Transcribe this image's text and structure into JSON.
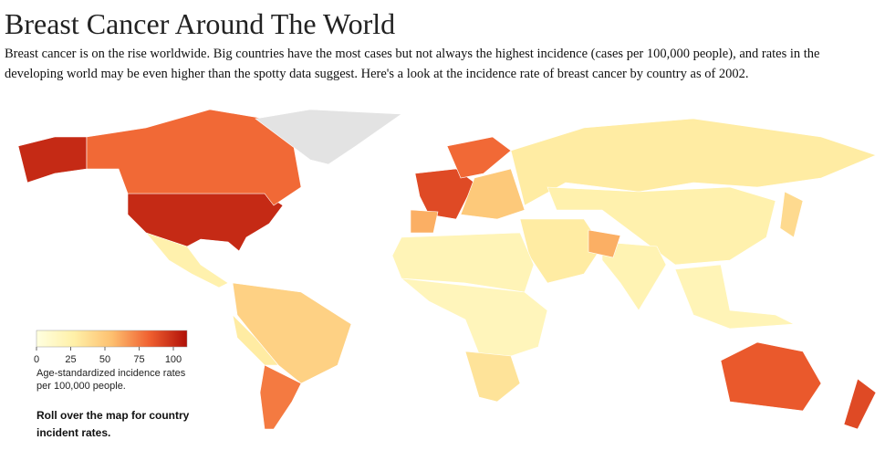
{
  "header": {
    "title": "Breast Cancer Around The World",
    "description": "Breast cancer is on the rise worldwide. Big countries have the most cases but not always the highest incidence (cases per 100,000 people), and rates in the developing world may be even higher than the spotty data suggest. Here's a look at the incidence rate of breast cancer by country as of 2002."
  },
  "map": {
    "type": "choropleth",
    "values": [
      101,
      80,
      null,
      25,
      45,
      75,
      30,
      90,
      80,
      50,
      60,
      30,
      25,
      22,
      30,
      60,
      20,
      18,
      35,
      20,
      40,
      85,
      90
    ],
    "no_data_color": "#e3e3e3",
    "legend": {
      "range": [
        0,
        110
      ],
      "ticks": [
        0,
        25,
        50,
        75,
        100
      ],
      "stops": [
        "#ffffe0",
        "#fff0a8",
        "#fdc070",
        "#f06030",
        "#b01008"
      ],
      "caption": "Age-standardized incidence rates per 100,000 people."
    },
    "instruction": "Roll over the map for country incident rates."
  }
}
